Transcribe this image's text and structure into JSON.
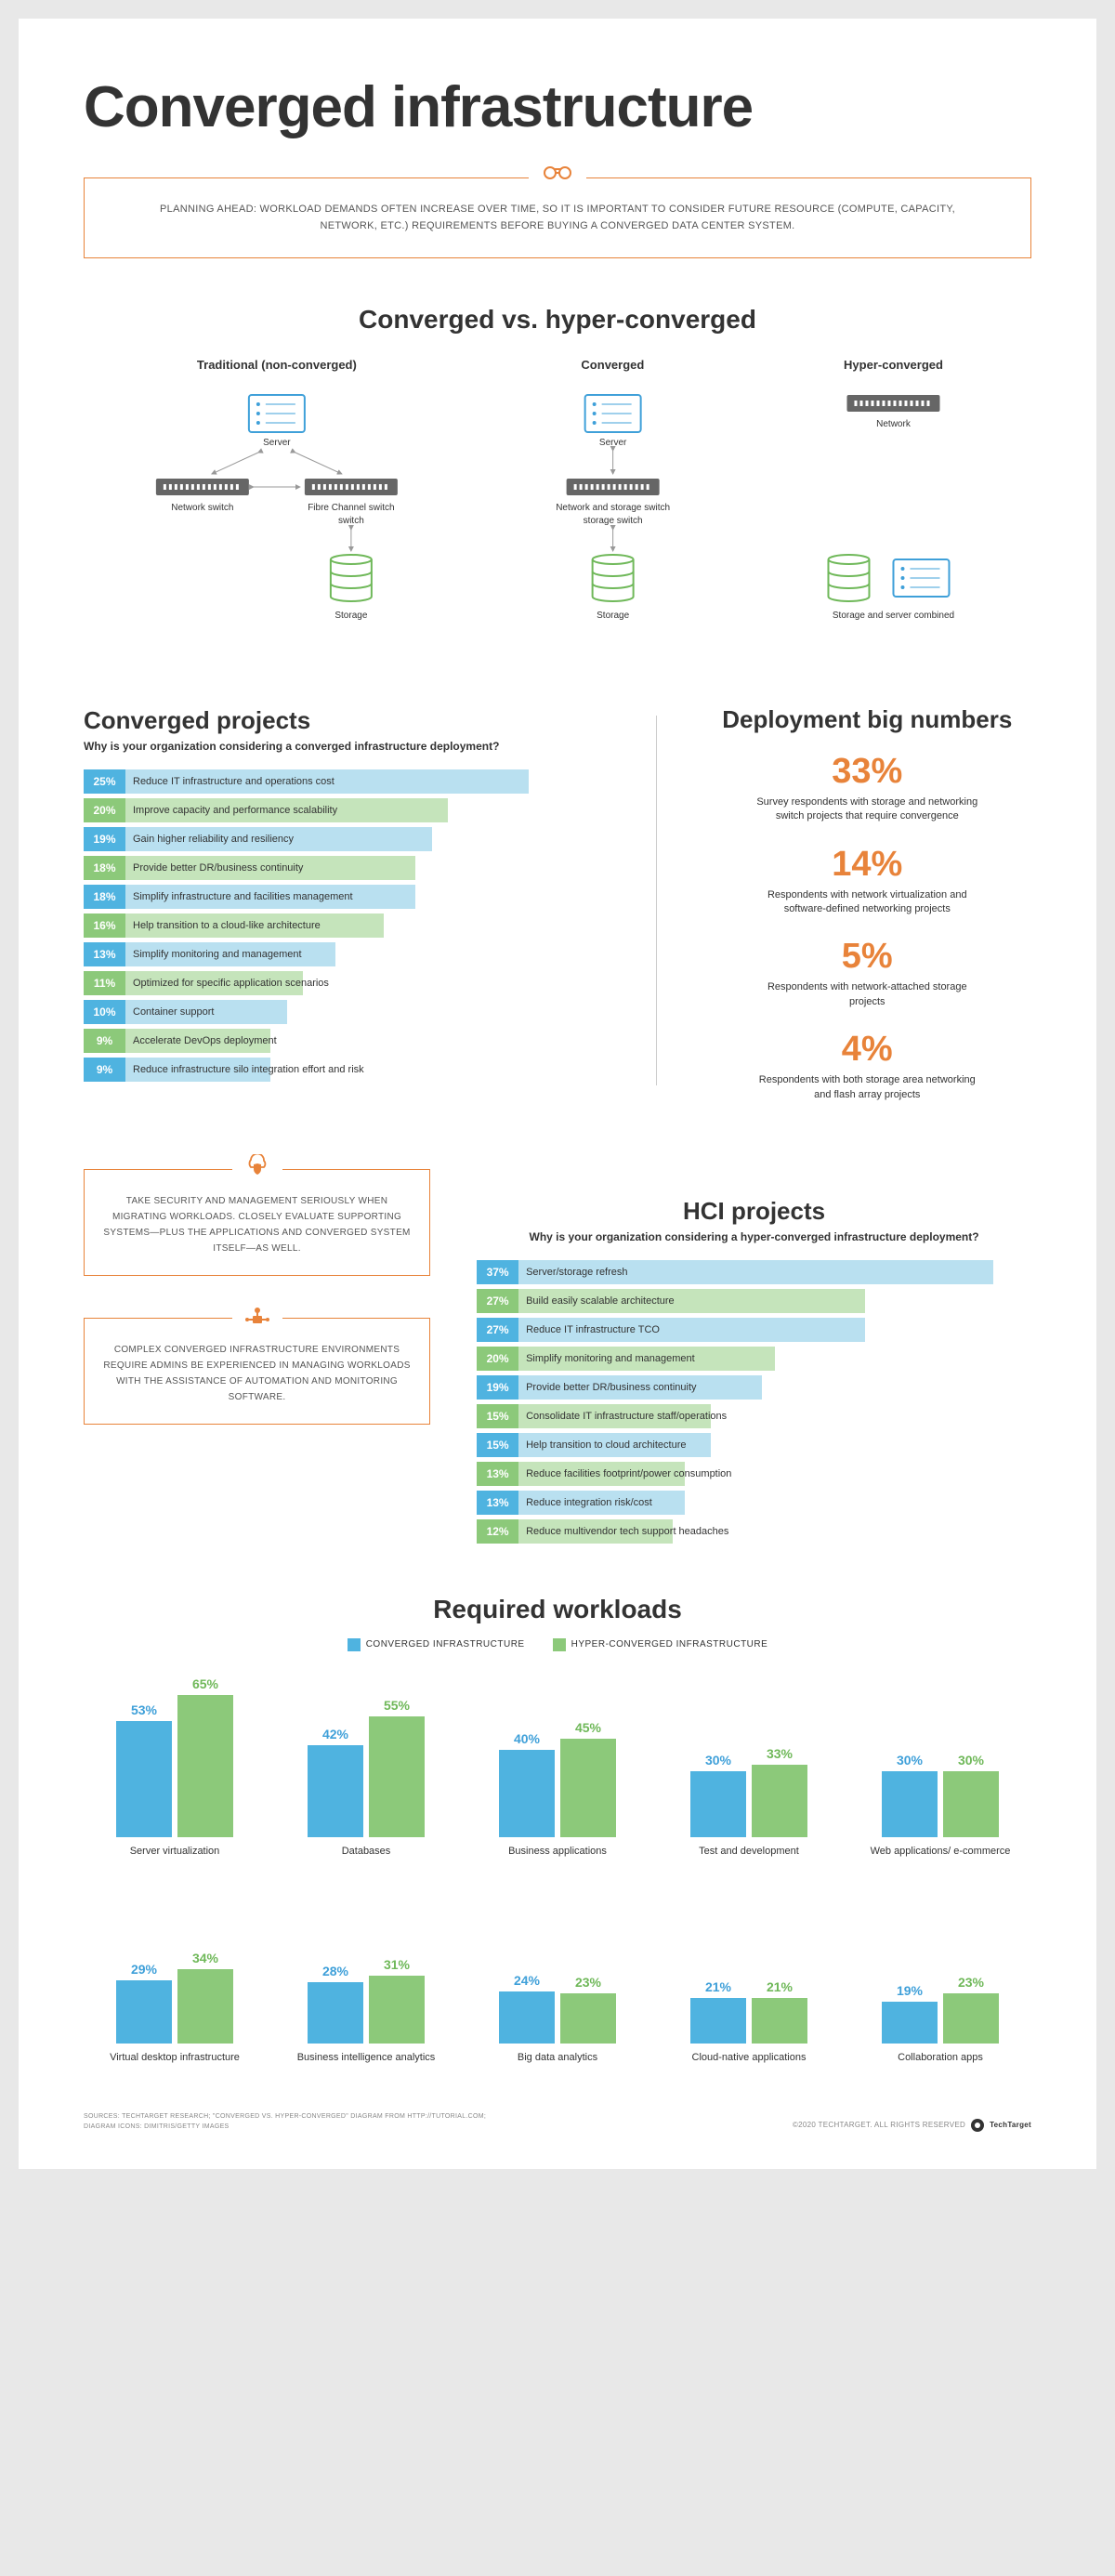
{
  "colors": {
    "blue": "#4fb3e0",
    "blue_dark": "#3fa0d9",
    "blue_pale": "#b9e0f0",
    "green": "#8cc97a",
    "green_dark": "#6fb859",
    "green_pale": "#c5e4bb",
    "orange": "#e8833a",
    "text": "#333333",
    "background": "#ffffff"
  },
  "title": "Converged infrastructure",
  "planning_box": "PLANNING AHEAD: WORKLOAD DEMANDS OFTEN INCREASE OVER TIME, SO IT IS IMPORTANT TO CONSIDER FUTURE RESOURCE (COMPUTE, CAPACITY, NETWORK, ETC.) REQUIREMENTS BEFORE BUYING A CONVERGED DATA CENTER SYSTEM.",
  "comparison": {
    "title": "Converged vs. hyper-converged",
    "columns": [
      {
        "title": "Traditional (non-converged)",
        "labels": {
          "server": "Server",
          "net1": "Network switch",
          "net2": "Fibre Channel switch",
          "storage": "Storage"
        }
      },
      {
        "title": "Converged",
        "labels": {
          "server": "Server",
          "net": "Network and storage switch",
          "storage": "Storage"
        }
      },
      {
        "title": "Hyper-converged",
        "labels": {
          "net": "Network",
          "combined": "Storage and server combined"
        }
      }
    ]
  },
  "converged_projects": {
    "title": "Converged projects",
    "subtitle": "Why is your organization considering a converged infrastructure deployment?",
    "max_pct": 30,
    "bars": [
      {
        "pct": 25,
        "label": "Reduce IT infrastructure and operations cost",
        "c": "blue"
      },
      {
        "pct": 20,
        "label": "Improve capacity and performance scalability",
        "c": "green"
      },
      {
        "pct": 19,
        "label": "Gain higher reliability and resiliency",
        "c": "blue"
      },
      {
        "pct": 18,
        "label": "Provide better DR/business continuity",
        "c": "green"
      },
      {
        "pct": 18,
        "label": "Simplify infrastructure and facilities management",
        "c": "blue"
      },
      {
        "pct": 16,
        "label": "Help transition to a cloud-like architecture",
        "c": "green"
      },
      {
        "pct": 13,
        "label": "Simplify monitoring and management",
        "c": "blue"
      },
      {
        "pct": 11,
        "label": "Optimized for specific application scenarios",
        "c": "green"
      },
      {
        "pct": 10,
        "label": "Container support",
        "c": "blue"
      },
      {
        "pct": 9,
        "label": "Accelerate DevOps deployment",
        "c": "green"
      },
      {
        "pct": 9,
        "label": "Reduce infrastructure silo integration effort and risk",
        "c": "blue"
      }
    ]
  },
  "big_numbers": {
    "title": "Deployment big numbers",
    "items": [
      {
        "value": "33%",
        "desc": "Survey respondents with storage and networking switch projects that require convergence"
      },
      {
        "value": "14%",
        "desc": "Respondents with network virtualization and software-defined networking projects"
      },
      {
        "value": "5%",
        "desc": "Respondents with network-attached storage projects"
      },
      {
        "value": "4%",
        "desc": "Respondents with both storage area networking and flash array projects"
      }
    ]
  },
  "callouts": [
    "TAKE SECURITY AND MANAGEMENT SERIOUSLY WHEN MIGRATING WORKLOADS. CLOSELY EVALUATE SUPPORTING SYSTEMS—PLUS THE APPLICATIONS AND CONVERGED SYSTEM ITSELF—AS WELL.",
    "COMPLEX CONVERGED INFRASTRUCTURE ENVIRONMENTS REQUIRE ADMINS BE EXPERIENCED IN MANAGING WORKLOADS WITH THE ASSISTANCE OF AUTOMATION AND MONITORING SOFTWARE."
  ],
  "hci_projects": {
    "title": "HCI projects",
    "subtitle": "Why is your organization considering a hyper-converged infrastructure deployment?",
    "max_pct": 40,
    "bars": [
      {
        "pct": 37,
        "label": "Server/storage refresh",
        "c": "blue"
      },
      {
        "pct": 27,
        "label": "Build easily scalable architecture",
        "c": "green"
      },
      {
        "pct": 27,
        "label": "Reduce IT infrastructure TCO",
        "c": "blue"
      },
      {
        "pct": 20,
        "label": "Simplify monitoring and management",
        "c": "green"
      },
      {
        "pct": 19,
        "label": "Provide better DR/business continuity",
        "c": "blue"
      },
      {
        "pct": 15,
        "label": "Consolidate IT infrastructure staff/operations",
        "c": "green"
      },
      {
        "pct": 15,
        "label": "Help transition to cloud architecture",
        "c": "blue"
      },
      {
        "pct": 13,
        "label": "Reduce facilities footprint/power consumption",
        "c": "green"
      },
      {
        "pct": 13,
        "label": "Reduce integration risk/cost",
        "c": "blue"
      },
      {
        "pct": 12,
        "label": "Reduce multivendor tech support headaches",
        "c": "green"
      }
    ]
  },
  "workloads": {
    "title": "Required workloads",
    "legend": [
      {
        "label": "CONVERGED INFRASTRUCTURE",
        "color": "#4fb3e0"
      },
      {
        "label": "HYPER-CONVERGED INFRASTRUCTURE",
        "color": "#8cc97a"
      }
    ],
    "max_pct": 70,
    "items": [
      {
        "label": "Server virtualization",
        "ci": 53,
        "hci": 65
      },
      {
        "label": "Databases",
        "ci": 42,
        "hci": 55
      },
      {
        "label": "Business applications",
        "ci": 40,
        "hci": 45
      },
      {
        "label": "Test and development",
        "ci": 30,
        "hci": 33
      },
      {
        "label": "Web applications/ e-commerce",
        "ci": 30,
        "hci": 30
      },
      {
        "label": "Virtual desktop infrastructure",
        "ci": 29,
        "hci": 34
      },
      {
        "label": "Business intelligence analytics",
        "ci": 28,
        "hci": 31
      },
      {
        "label": "Big data analytics",
        "ci": 24,
        "hci": 23
      },
      {
        "label": "Cloud-native applications",
        "ci": 21,
        "hci": 21
      },
      {
        "label": "Collaboration apps",
        "ci": 19,
        "hci": 23
      }
    ]
  },
  "footer": {
    "source1": "SOURCES: TECHTARGET RESEARCH; \"CONVERGED VS. HYPER-CONVERGED\" DIAGRAM FROM HTTP://TUTORIAL.COM;",
    "source2": "DIAGRAM ICONS: DIMITRIS/GETTY IMAGES",
    "copyright": "©2020 TECHTARGET. ALL RIGHTS RESERVED",
    "brand": "TechTarget"
  }
}
